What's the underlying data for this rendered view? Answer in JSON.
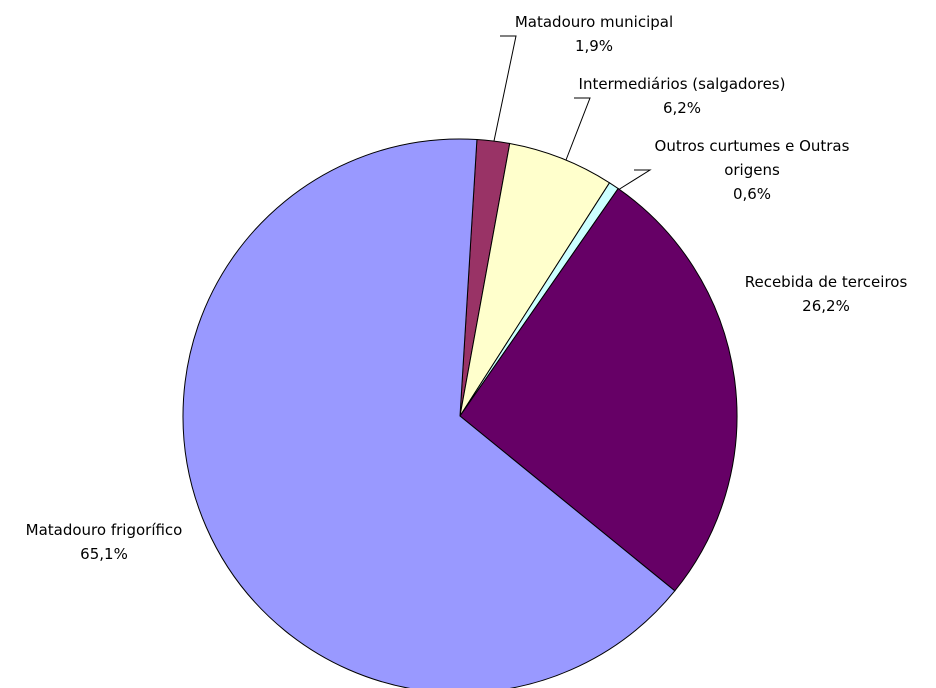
{
  "chart_data": {
    "type": "pie",
    "categories": [
      "Matadouro municipal",
      "Intermediários (salgadores)",
      "Outros curtumes e Outras origens",
      "Recebida de terceiros",
      "Matadouro frigorífico"
    ],
    "values": [
      1.9,
      6.2,
      0.6,
      26.2,
      65.1
    ],
    "value_labels": [
      "1,9%",
      "6,2%",
      "0,6%",
      "26,2%",
      "65,1%"
    ],
    "colors": [
      "#993366",
      "#ffffcc",
      "#ccffff",
      "#660066",
      "#9999ff"
    ]
  }
}
